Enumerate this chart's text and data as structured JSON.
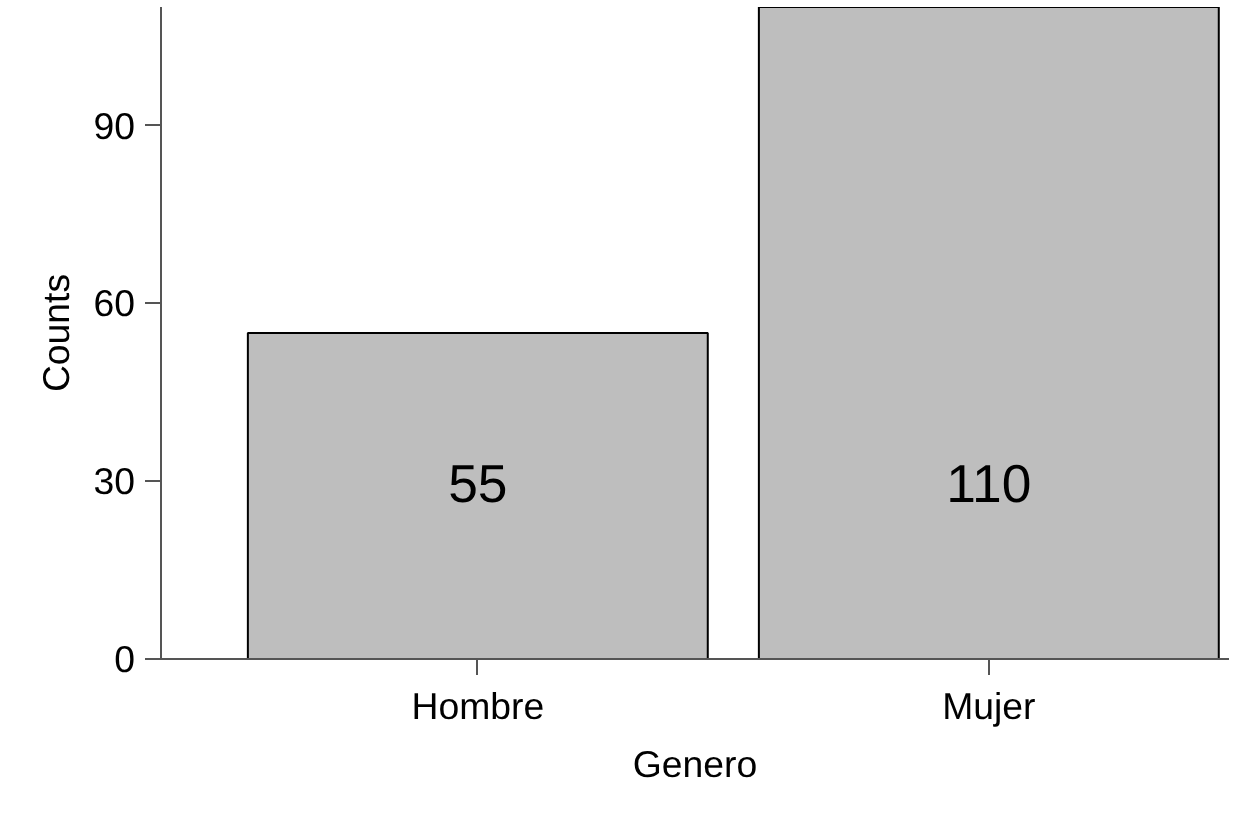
{
  "chart_data": {
    "type": "bar",
    "xlabel": "Genero",
    "ylabel": "Counts",
    "categories": [
      "Hombre",
      "Mujer"
    ],
    "values": [
      55,
      110
    ],
    "color": "#bebebe",
    "ylim": [
      0,
      110
    ],
    "yticks": [
      0,
      30,
      60,
      90
    ],
    "data_labels": true,
    "grid": false
  }
}
